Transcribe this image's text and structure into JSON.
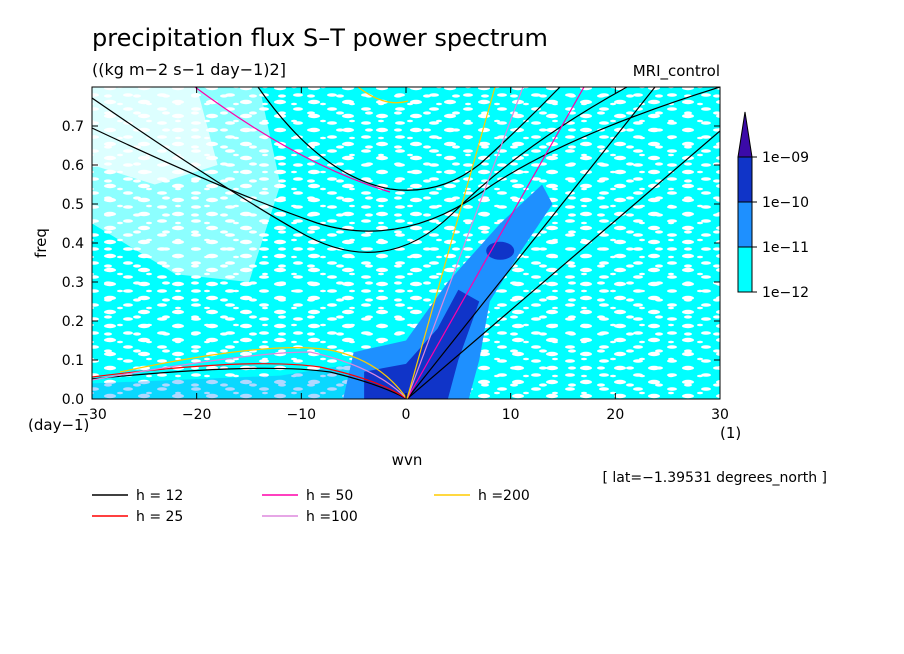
{
  "chart_data": {
    "type": "heatmap",
    "title": "precipitation flux S–T power spectrum",
    "subtitle": "((kg m−2 s−1 day−1)2]",
    "experiment": "MRI_control",
    "xlabel": "wvn",
    "ylabel": "freq",
    "x_unit": "(1)",
    "y_unit": "(day−1)",
    "xlim": [
      -30,
      30
    ],
    "ylim": [
      0,
      0.8
    ],
    "x_ticks": [
      "−30",
      "−20",
      "−10",
      "0",
      "10",
      "20",
      "30"
    ],
    "x_tick_values": [
      -30,
      -20,
      -10,
      0,
      10,
      20,
      30
    ],
    "y_ticks": [
      "0.0",
      "0.1",
      "0.2",
      "0.3",
      "0.4",
      "0.5",
      "0.6",
      "0.7"
    ],
    "y_tick_values": [
      0.0,
      0.1,
      0.2,
      0.3,
      0.4,
      0.5,
      0.6,
      0.7
    ],
    "colorbar": {
      "labels": [
        "1e−12",
        "1e−11",
        "1e−10",
        "1e−09"
      ],
      "colors": [
        "#00ffff",
        "#1e90ff",
        "#1034c8",
        "#3b0aa8"
      ]
    },
    "dispersion_curves": [
      {
        "h": 12,
        "label": "h = 12",
        "color": "#000000"
      },
      {
        "h": 25,
        "label": "h = 25",
        "color": "#ff0000"
      },
      {
        "h": 50,
        "label": "h = 50",
        "color": "#ff00aa"
      },
      {
        "h": 100,
        "label": "h =100",
        "color": "#dd88dd"
      },
      {
        "h": 200,
        "label": "h =200",
        "color": "#ffcc00"
      }
    ],
    "annotation": "[ lat=−1.39531 degrees_north ]"
  }
}
